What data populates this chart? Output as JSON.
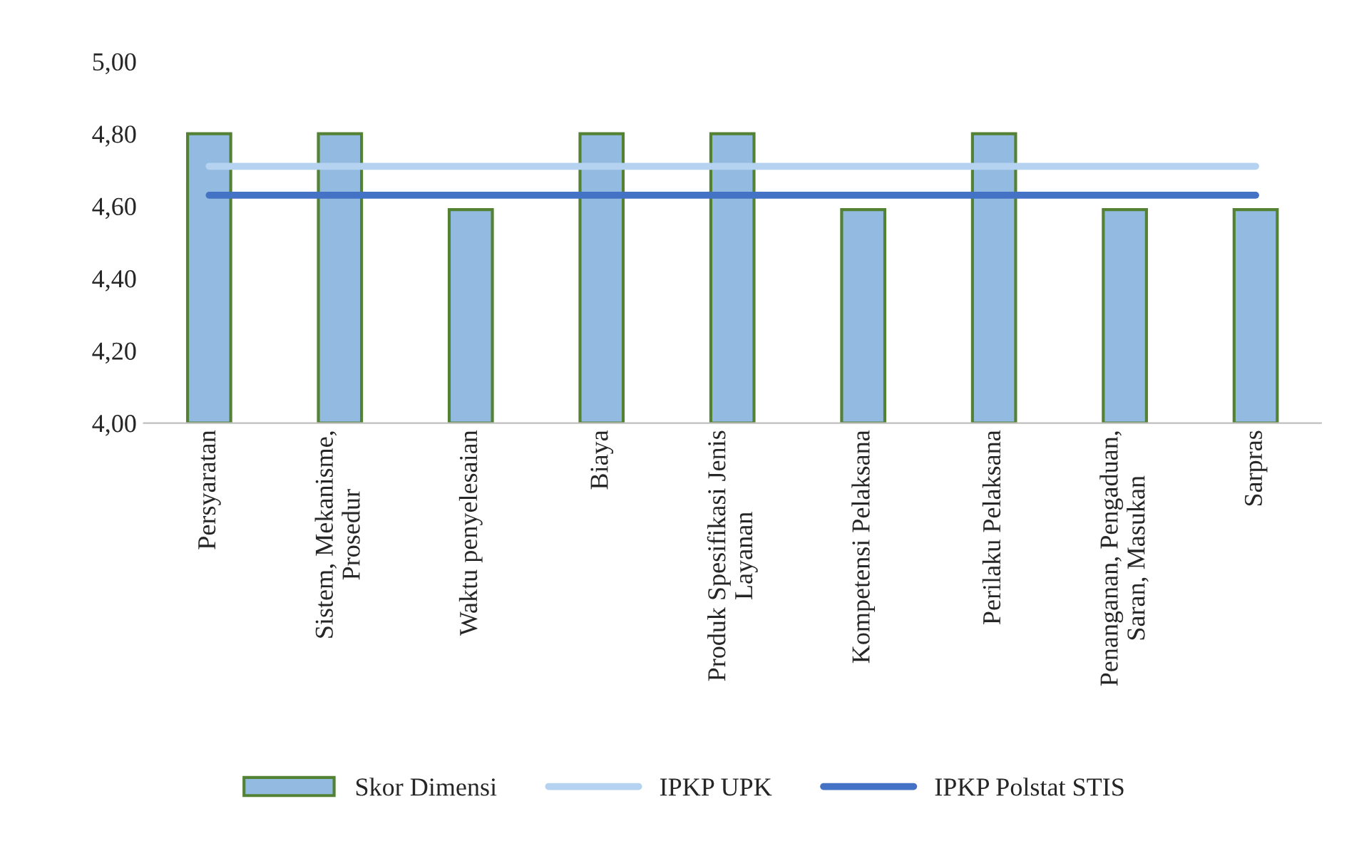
{
  "chart_data": {
    "type": "bar",
    "categories": [
      "Persyaratan",
      "Sistem, Mekanisme,\nProsedur",
      "Waktu penyelesaian",
      "Biaya",
      "Produk Spesifikasi Jenis\nLayanan",
      "Kompetensi Pelaksana",
      "Perilaku Pelaksana",
      "Penanganan, Pengaduan,\nSaran, Masukan",
      "Sarpras"
    ],
    "series": [
      {
        "name": "Skor Dimensi",
        "color": "#93bbe2",
        "values": [
          4.8,
          4.8,
          4.59,
          4.8,
          4.8,
          4.59,
          4.8,
          4.59,
          4.59
        ]
      },
      {
        "name": "IPKP UPK",
        "type": "line",
        "color": "#b5d3f0",
        "values": [
          4.71,
          4.71,
          4.71,
          4.71,
          4.71,
          4.71,
          4.71,
          4.71,
          4.71
        ]
      },
      {
        "name": "IPKP Polstat STIS",
        "type": "line",
        "color": "#4472c4",
        "values": [
          4.63,
          4.63,
          4.63,
          4.63,
          4.63,
          4.63,
          4.63,
          4.63,
          4.63
        ]
      }
    ],
    "ylim": [
      4,
      5
    ],
    "yticks": [
      {
        "value": 4,
        "label": "4,00"
      },
      {
        "value": 4.2,
        "label": "4,20"
      },
      {
        "value": 4.4,
        "label": "4,40"
      },
      {
        "value": 4.6,
        "label": "4,60"
      },
      {
        "value": 4.8,
        "label": "4,80"
      },
      {
        "value": 5,
        "label": "5,00"
      }
    ],
    "grid": false,
    "legend": "bottom"
  }
}
